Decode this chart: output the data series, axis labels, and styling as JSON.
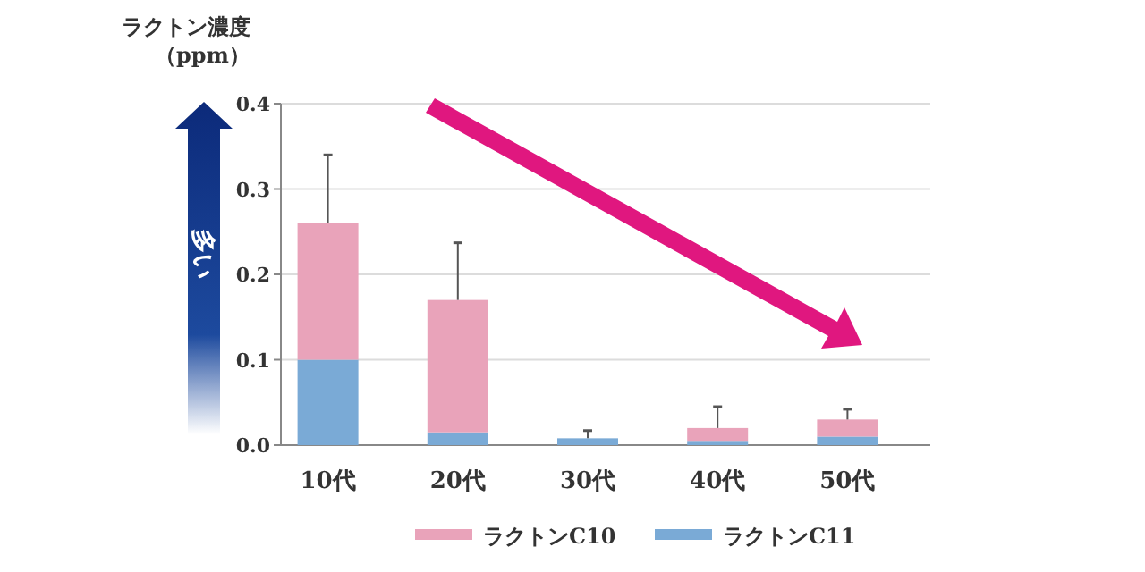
{
  "chart_data": {
    "type": "bar",
    "stacked": true,
    "ylabel": "ラクトン濃度（ppm）",
    "categories": [
      "10代",
      "20代",
      "30代",
      "40代",
      "50代"
    ],
    "series": [
      {
        "name": "ラクトンC11",
        "color": "#7aaad6",
        "values": [
          0.1,
          0.015,
          0.008,
          0.005,
          0.01
        ]
      },
      {
        "name": "ラクトンC10",
        "color": "#e9a3ba",
        "values": [
          0.16,
          0.155,
          0,
          0.015,
          0.02
        ],
        "errors": [
          [
            0.26,
            0.34
          ],
          [
            0.17,
            0.237
          ],
          [
            0.008,
            0.017
          ],
          [
            0.02,
            0.045
          ],
          [
            0.03,
            0.042
          ]
        ]
      }
    ],
    "ylim": [
      0,
      0.4
    ],
    "yticks": [
      {
        "value": 0,
        "label": "0.0"
      },
      0.1,
      0.2,
      0.3,
      0.4
    ],
    "grid": "y",
    "legend": "bottom",
    "annotations": [
      "多い"
    ]
  }
}
